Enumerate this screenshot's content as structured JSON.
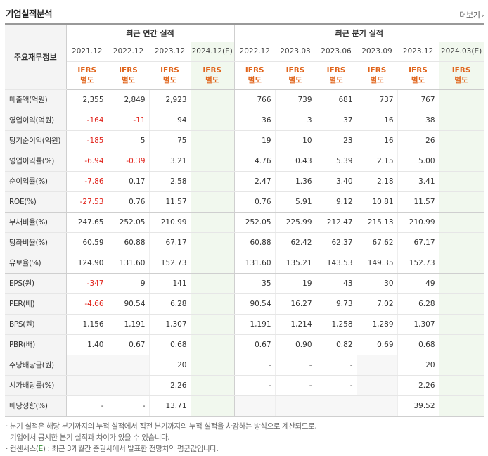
{
  "header": {
    "title": "기업실적분석",
    "more_label": "더보기",
    "more_arrow": "›"
  },
  "table": {
    "row_head_label": "주요재무정보",
    "group_annual": "최근 연간 실적",
    "group_quarter": "최근 분기 실적",
    "annual_periods": [
      "2021.12",
      "2022.12",
      "2023.12",
      "2024.12(E)"
    ],
    "quarter_periods": [
      "2022.12",
      "2023.03",
      "2023.06",
      "2023.09",
      "2023.12",
      "2024.03(E)"
    ],
    "ifrs_line1": "IFRS",
    "ifrs_line2": "별도",
    "rows": [
      {
        "label": "매출액(억원)",
        "annual": [
          "2,355",
          "2,849",
          "2,923",
          ""
        ],
        "quarter": [
          "766",
          "739",
          "681",
          "737",
          "767",
          ""
        ]
      },
      {
        "label": "영업이익(억원)",
        "annual": [
          "-164",
          "-11",
          "94",
          ""
        ],
        "quarter": [
          "36",
          "3",
          "37",
          "16",
          "38",
          ""
        ]
      },
      {
        "label": "당기순이익(억원)",
        "annual": [
          "-185",
          "5",
          "75",
          ""
        ],
        "quarter": [
          "19",
          "10",
          "23",
          "16",
          "26",
          ""
        ]
      },
      {
        "label": "영업이익률(%)",
        "annual": [
          "-6.94",
          "-0.39",
          "3.21",
          ""
        ],
        "quarter": [
          "4.76",
          "0.43",
          "5.39",
          "2.15",
          "5.00",
          ""
        ]
      },
      {
        "label": "순이익률(%)",
        "annual": [
          "-7.86",
          "0.17",
          "2.58",
          ""
        ],
        "quarter": [
          "2.47",
          "1.36",
          "3.40",
          "2.18",
          "3.41",
          ""
        ]
      },
      {
        "label": "ROE(%)",
        "annual": [
          "-27.53",
          "0.76",
          "11.57",
          ""
        ],
        "quarter": [
          "0.76",
          "5.91",
          "9.12",
          "10.81",
          "11.57",
          ""
        ]
      },
      {
        "label": "부채비율(%)",
        "annual": [
          "247.65",
          "252.05",
          "210.99",
          ""
        ],
        "quarter": [
          "252.05",
          "225.99",
          "212.47",
          "215.13",
          "210.99",
          ""
        ]
      },
      {
        "label": "당좌비율(%)",
        "annual": [
          "60.59",
          "60.88",
          "67.17",
          ""
        ],
        "quarter": [
          "60.88",
          "62.42",
          "62.37",
          "67.62",
          "67.17",
          ""
        ]
      },
      {
        "label": "유보율(%)",
        "annual": [
          "124.90",
          "131.60",
          "152.73",
          ""
        ],
        "quarter": [
          "131.60",
          "135.21",
          "143.53",
          "149.35",
          "152.73",
          ""
        ]
      },
      {
        "label": "EPS(원)",
        "annual": [
          "-347",
          "9",
          "141",
          ""
        ],
        "quarter": [
          "35",
          "19",
          "43",
          "30",
          "49",
          ""
        ]
      },
      {
        "label": "PER(배)",
        "annual": [
          "-4.66",
          "90.54",
          "6.28",
          ""
        ],
        "quarter": [
          "90.54",
          "16.27",
          "9.73",
          "7.02",
          "6.28",
          ""
        ]
      },
      {
        "label": "BPS(원)",
        "annual": [
          "1,156",
          "1,191",
          "1,307",
          ""
        ],
        "quarter": [
          "1,191",
          "1,214",
          "1,258",
          "1,289",
          "1,307",
          ""
        ]
      },
      {
        "label": "PBR(배)",
        "annual": [
          "1.40",
          "0.67",
          "0.68",
          ""
        ],
        "quarter": [
          "0.67",
          "0.90",
          "0.82",
          "0.69",
          "0.68",
          ""
        ]
      },
      {
        "label": "주당배당금(원)",
        "annual": [
          "",
          "",
          "20",
          ""
        ],
        "quarter": [
          "-",
          "-",
          "-",
          "",
          "20",
          ""
        ]
      },
      {
        "label": "시가배당률(%)",
        "annual": [
          "",
          "",
          "2.26",
          ""
        ],
        "quarter": [
          "-",
          "-",
          "-",
          "",
          "2.26",
          ""
        ]
      },
      {
        "label": "배당성향(%)",
        "annual": [
          "-",
          "-",
          "13.71",
          ""
        ],
        "quarter": [
          "",
          "",
          "",
          "",
          "39.52",
          ""
        ]
      }
    ]
  },
  "notes": {
    "line1": "분기 실적은 해당 분기까지의 누적 실적에서 직전 분기까지의 누적 실적을 차감하는 방식으로 계산되므로,",
    "line2": "기업에서 공시한 분기 실적과 차이가 있을 수 있습니다.",
    "line3_prefix": "컨센서스(",
    "line3_e": "E",
    "line3_suffix": ") : 최근 3개월간 증권사에서 발표한 전망치의 평균값입니다."
  },
  "colors": {
    "ifrs_orange": "#e0641b",
    "negative_red": "#e0231b",
    "estimate_bg": "#f1f8ee",
    "label_bg": "#f4f4f4"
  }
}
